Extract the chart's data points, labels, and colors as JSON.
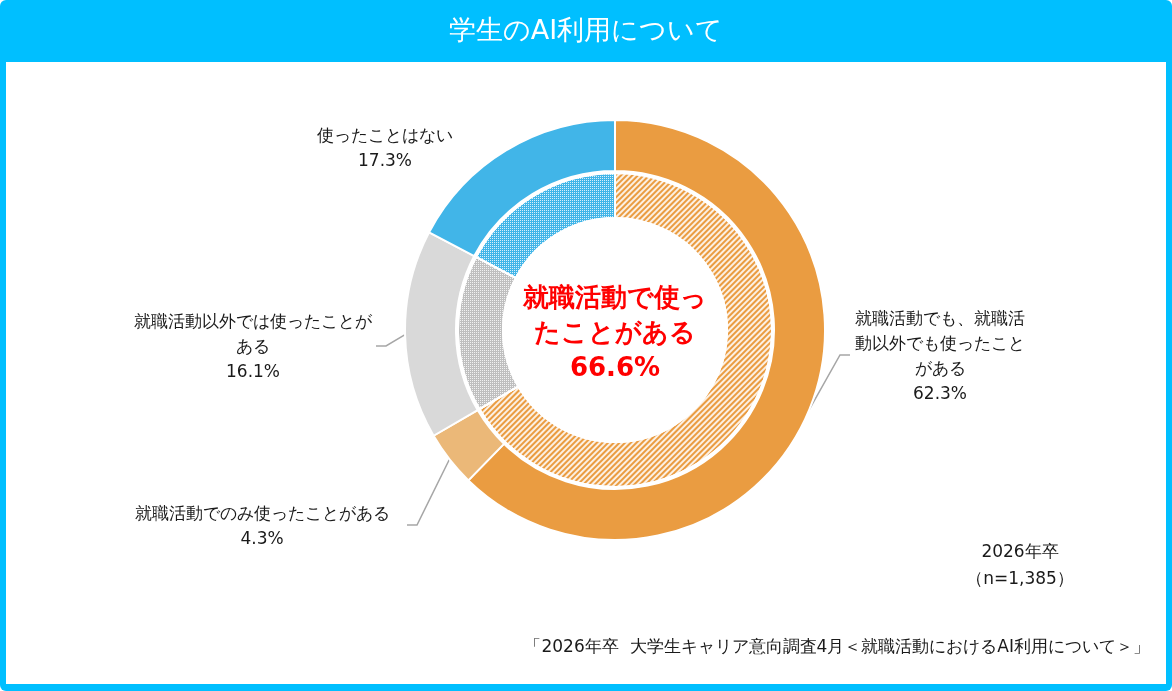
{
  "chart_data": {
    "type": "donut",
    "title": "学生のAI利用について",
    "categories": [
      "就職活動でも、就職活動以外でも使ったことがある",
      "就職活動でのみ使ったことがある",
      "就職活動以外では使ったことがある",
      "使ったことはない"
    ],
    "series": [
      {
        "values": [
          62.3,
          4.3,
          16.1,
          17.3
        ],
        "colors": [
          "#ea9c41",
          "#ebb878",
          "#d9d9d9",
          "#41b5e8"
        ],
        "value_labels": [
          "62.3%",
          "4.3%",
          "16.1%",
          "17.3%"
        ]
      },
      {
        "values": [
          66.6,
          null,
          16.1,
          17.3
        ],
        "colors": [
          "#ea9c41",
          "#ebb878",
          "#bfbfbf",
          "#41b5e8"
        ]
      }
    ],
    "annotations": [
      "就職活動で使ったことがある66.6%",
      "2026年卒",
      "（n=1,385）",
      "「2026年卒  大学生キャリア意向調査4月＜就職活動におけるAI利用について＞」"
    ]
  }
}
